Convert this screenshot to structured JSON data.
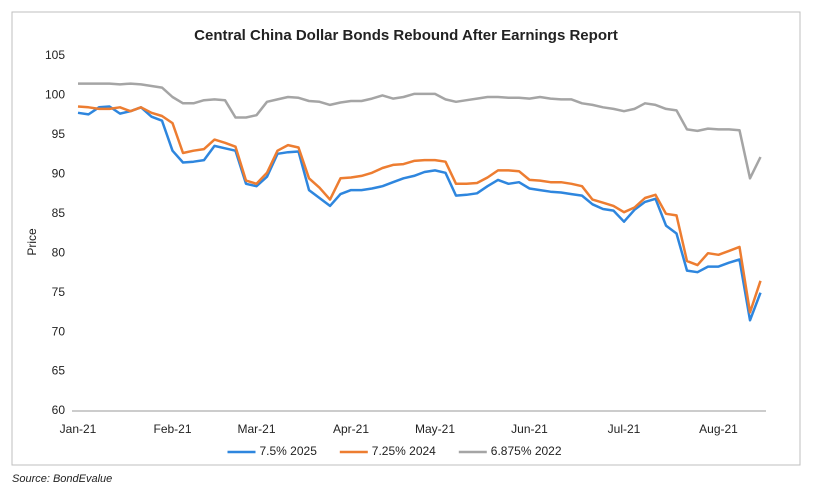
{
  "chart_data": {
    "type": "line",
    "title": "Central China Dollar Bonds Rebound After Earnings Report",
    "y_label": "Price",
    "source": "Source: BondEvalue",
    "categories": [
      "Jan-21",
      null,
      null,
      null,
      null,
      null,
      null,
      null,
      null,
      "Feb-21",
      null,
      null,
      null,
      null,
      null,
      null,
      null,
      "Mar-21",
      null,
      null,
      null,
      null,
      null,
      null,
      null,
      null,
      "Apr-21",
      null,
      null,
      null,
      null,
      null,
      null,
      null,
      "May-21",
      null,
      null,
      null,
      null,
      null,
      null,
      null,
      null,
      "Jun-21",
      null,
      null,
      null,
      null,
      null,
      null,
      null,
      null,
      "Jul-21",
      null,
      null,
      null,
      null,
      null,
      null,
      null,
      null,
      "Aug-21",
      null,
      null,
      null,
      null
    ],
    "series": [
      {
        "name": "7.5% 2025",
        "color": "#2e86de",
        "values": [
          97.8,
          97.6,
          98.5,
          98.6,
          97.7,
          98.0,
          98.5,
          97.3,
          96.8,
          93.0,
          91.5,
          91.6,
          91.8,
          93.6,
          93.3,
          93.0,
          88.8,
          88.5,
          89.7,
          92.6,
          92.8,
          92.9,
          88.0,
          87.0,
          86.0,
          87.5,
          88.0,
          88.0,
          88.2,
          88.5,
          89.0,
          89.5,
          89.8,
          90.3,
          90.5,
          90.2,
          87.3,
          87.4,
          87.6,
          88.5,
          89.3,
          88.8,
          89.0,
          88.2,
          88.0,
          87.8,
          87.7,
          87.5,
          87.3,
          86.2,
          85.6,
          85.4,
          84.0,
          85.5,
          86.5,
          86.9,
          83.5,
          82.5,
          77.8,
          77.6,
          78.3,
          78.3,
          78.8,
          79.2,
          71.5,
          75.0
        ]
      },
      {
        "name": "7.25% 2024",
        "color": "#ed7d31",
        "values": [
          98.6,
          98.5,
          98.3,
          98.3,
          98.5,
          98.0,
          98.5,
          97.8,
          97.4,
          96.5,
          92.7,
          93.0,
          93.2,
          94.4,
          94.0,
          93.5,
          89.2,
          88.8,
          90.2,
          93.0,
          93.7,
          93.4,
          89.5,
          88.3,
          86.8,
          89.5,
          89.6,
          89.8,
          90.2,
          90.8,
          91.2,
          91.3,
          91.7,
          91.8,
          91.8,
          91.6,
          88.8,
          88.8,
          88.9,
          89.6,
          90.5,
          90.5,
          90.4,
          89.3,
          89.2,
          89.0,
          89.0,
          88.8,
          88.5,
          86.8,
          86.4,
          86.0,
          85.2,
          85.8,
          87.0,
          87.4,
          85.0,
          84.8,
          79.0,
          78.5,
          80.0,
          79.8,
          80.3,
          80.8,
          72.5,
          76.5
        ]
      },
      {
        "name": "6.875% 2022",
        "color": "#a5a5a5",
        "values": [
          101.5,
          101.5,
          101.5,
          101.5,
          101.4,
          101.5,
          101.4,
          101.2,
          101.0,
          99.8,
          99.0,
          99.0,
          99.4,
          99.5,
          99.4,
          97.2,
          97.2,
          97.5,
          99.2,
          99.5,
          99.8,
          99.7,
          99.3,
          99.2,
          98.8,
          99.1,
          99.3,
          99.3,
          99.6,
          100.0,
          99.6,
          99.8,
          100.2,
          100.2,
          100.2,
          99.5,
          99.2,
          99.4,
          99.6,
          99.8,
          99.8,
          99.7,
          99.7,
          99.6,
          99.8,
          99.6,
          99.5,
          99.5,
          99.0,
          98.8,
          98.5,
          98.3,
          98.0,
          98.3,
          99.0,
          98.8,
          98.3,
          98.1,
          95.7,
          95.5,
          95.8,
          95.7,
          95.7,
          95.6,
          89.5,
          92.2
        ]
      }
    ],
    "ylim": [
      60,
      105
    ],
    "yticks": [
      60,
      65,
      70,
      75,
      80,
      85,
      90,
      95,
      100,
      105
    ],
    "grid": false,
    "legend": "bottom"
  }
}
